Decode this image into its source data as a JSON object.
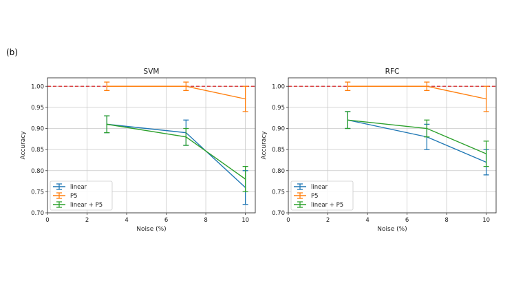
{
  "figure": {
    "panel_label": "(b)"
  },
  "chart_data": [
    {
      "type": "line",
      "title": "SVM",
      "xlabel": "Noise (%)",
      "ylabel": "Accuracy",
      "xlim": [
        0,
        10.5
      ],
      "ylim": [
        0.7,
        1.02
      ],
      "xticks": [
        0,
        2,
        4,
        6,
        8,
        10
      ],
      "yticks": [
        0.7,
        0.75,
        0.8,
        0.85,
        0.9,
        0.95,
        1.0
      ],
      "grid": true,
      "legend_position": "lower-left",
      "reference_line": {
        "y": 1.0,
        "color": "#d62728",
        "style": "dashed"
      },
      "x": [
        3,
        7,
        10
      ],
      "series": [
        {
          "name": "linear",
          "color": "#1f77b4",
          "values": [
            0.91,
            0.89,
            0.76
          ],
          "errors": [
            0.02,
            0.03,
            0.04
          ]
        },
        {
          "name": "P5",
          "color": "#ff7f0e",
          "values": [
            1.0,
            1.0,
            0.97
          ],
          "errors": [
            0.01,
            0.01,
            0.03
          ]
        },
        {
          "name": "linear + P5",
          "color": "#2ca02c",
          "values": [
            0.91,
            0.88,
            0.78
          ],
          "errors": [
            0.02,
            0.02,
            0.03
          ]
        }
      ]
    },
    {
      "type": "line",
      "title": "RFC",
      "xlabel": "Noise (%)",
      "ylabel": "Accuracy",
      "xlim": [
        0,
        10.5
      ],
      "ylim": [
        0.7,
        1.02
      ],
      "xticks": [
        0,
        2,
        4,
        6,
        8,
        10
      ],
      "yticks": [
        0.7,
        0.75,
        0.8,
        0.85,
        0.9,
        0.95,
        1.0
      ],
      "grid": true,
      "legend_position": "lower-left",
      "reference_line": {
        "y": 1.0,
        "color": "#d62728",
        "style": "dashed"
      },
      "x": [
        3,
        7,
        10
      ],
      "series": [
        {
          "name": "linear",
          "color": "#1f77b4",
          "values": [
            0.92,
            0.88,
            0.82
          ],
          "errors": [
            0.02,
            0.03,
            0.03
          ]
        },
        {
          "name": "P5",
          "color": "#ff7f0e",
          "values": [
            1.0,
            1.0,
            0.97
          ],
          "errors": [
            0.01,
            0.01,
            0.03
          ]
        },
        {
          "name": "linear + P5",
          "color": "#2ca02c",
          "values": [
            0.92,
            0.9,
            0.84
          ],
          "errors": [
            0.02,
            0.02,
            0.03
          ]
        }
      ]
    }
  ]
}
